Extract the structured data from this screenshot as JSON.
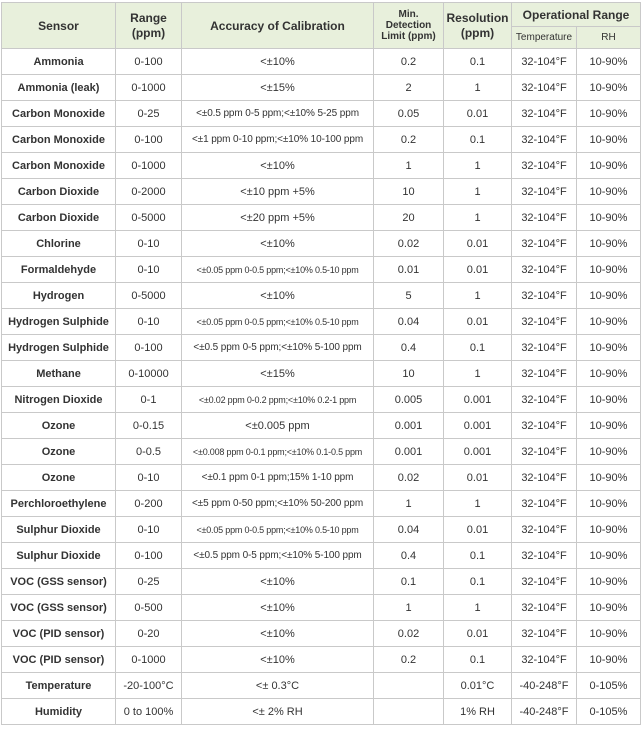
{
  "headers": {
    "sensor": "Sensor",
    "range": "Range (ppm)",
    "accuracy": "Accuracy of Calibration",
    "min_detection": "Min. Detection Limit (ppm)",
    "resolution": "Resolution (ppm)",
    "operational_range": "Operational Range",
    "temperature": "Temperature",
    "rh": "RH"
  },
  "rows": [
    {
      "sensor": "Ammonia",
      "range": "0-100",
      "accuracy": "<±10%",
      "mdl": "0.2",
      "resolution": "0.1",
      "temp": "32-104°F",
      "rh": "10-90%"
    },
    {
      "sensor": "Ammonia (leak)",
      "range": "0-1000",
      "accuracy": "<±15%",
      "mdl": "2",
      "resolution": "1",
      "temp": "32-104°F",
      "rh": "10-90%"
    },
    {
      "sensor": "Carbon Monoxide",
      "range": "0-25",
      "accuracy": "<±0.5 ppm 0-5 ppm;<±10% 5-25 ppm",
      "mdl": "0.05",
      "resolution": "0.01",
      "temp": "32-104°F",
      "rh": "10-90%"
    },
    {
      "sensor": "Carbon Monoxide",
      "range": "0-100",
      "accuracy": "<±1 ppm 0-10 ppm;<±10% 10-100 ppm",
      "mdl": "0.2",
      "resolution": "0.1",
      "temp": "32-104°F",
      "rh": "10-90%"
    },
    {
      "sensor": "Carbon Monoxide",
      "range": "0-1000",
      "accuracy": "<±10%",
      "mdl": "1",
      "resolution": "1",
      "temp": "32-104°F",
      "rh": "10-90%"
    },
    {
      "sensor": "Carbon Dioxide",
      "range": "0-2000",
      "accuracy": "<±10 ppm +5%",
      "mdl": "10",
      "resolution": "1",
      "temp": "32-104°F",
      "rh": "10-90%"
    },
    {
      "sensor": "Carbon Dioxide",
      "range": "0-5000",
      "accuracy": "<±20 ppm +5%",
      "mdl": "20",
      "resolution": "1",
      "temp": "32-104°F",
      "rh": "10-90%"
    },
    {
      "sensor": "Chlorine",
      "range": "0-10",
      "accuracy": "<±10%",
      "mdl": "0.02",
      "resolution": "0.01",
      "temp": "32-104°F",
      "rh": "10-90%"
    },
    {
      "sensor": "Formaldehyde",
      "range": "0-10",
      "accuracy": "<±0.05 ppm 0-0.5 ppm;<±10% 0.5-10 ppm",
      "mdl": "0.01",
      "resolution": "0.01",
      "temp": "32-104°F",
      "rh": "10-90%"
    },
    {
      "sensor": "Hydrogen",
      "range": "0-5000",
      "accuracy": "<±10%",
      "mdl": "5",
      "resolution": "1",
      "temp": "32-104°F",
      "rh": "10-90%"
    },
    {
      "sensor": "Hydrogen Sulphide",
      "range": "0-10",
      "accuracy": "<±0.05 ppm 0-0.5 ppm;<±10% 0.5-10 ppm",
      "mdl": "0.04",
      "resolution": "0.01",
      "temp": "32-104°F",
      "rh": "10-90%"
    },
    {
      "sensor": "Hydrogen Sulphide",
      "range": "0-100",
      "accuracy": "<±0.5 ppm 0-5 ppm;<±10% 5-100 ppm",
      "mdl": "0.4",
      "resolution": "0.1",
      "temp": "32-104°F",
      "rh": "10-90%"
    },
    {
      "sensor": "Methane",
      "range": "0-10000",
      "accuracy": "<±15%",
      "mdl": "10",
      "resolution": "1",
      "temp": "32-104°F",
      "rh": "10-90%"
    },
    {
      "sensor": "Nitrogen Dioxide",
      "range": "0-1",
      "accuracy": "<±0.02 ppm 0-0.2 ppm;<±10% 0.2-1 ppm",
      "mdl": "0.005",
      "resolution": "0.001",
      "temp": "32-104°F",
      "rh": "10-90%"
    },
    {
      "sensor": "Ozone",
      "range": "0-0.15",
      "accuracy": "<±0.005 ppm",
      "mdl": "0.001",
      "resolution": "0.001",
      "temp": "32-104°F",
      "rh": "10-90%"
    },
    {
      "sensor": "Ozone",
      "range": "0-0.5",
      "accuracy": "<±0.008 ppm 0-0.1 ppm;<±10% 0.1-0.5 ppm",
      "mdl": "0.001",
      "resolution": "0.001",
      "temp": "32-104°F",
      "rh": "10-90%"
    },
    {
      "sensor": "Ozone",
      "range": "0-10",
      "accuracy": "<±0.1 ppm 0-1 ppm;15% 1-10 ppm",
      "mdl": "0.02",
      "resolution": "0.01",
      "temp": "32-104°F",
      "rh": "10-90%"
    },
    {
      "sensor": "Perchloroethylene",
      "range": "0-200",
      "accuracy": "<±5 ppm 0-50 ppm;<±10% 50-200 ppm",
      "mdl": "1",
      "resolution": "1",
      "temp": "32-104°F",
      "rh": "10-90%"
    },
    {
      "sensor": "Sulphur Dioxide",
      "range": "0-10",
      "accuracy": "<±0.05 ppm 0-0.5 ppm;<±10% 0.5-10 ppm",
      "mdl": "0.04",
      "resolution": "0.01",
      "temp": "32-104°F",
      "rh": "10-90%"
    },
    {
      "sensor": "Sulphur Dioxide",
      "range": "0-100",
      "accuracy": "<±0.5 ppm 0-5 ppm;<±10% 5-100 ppm",
      "mdl": "0.4",
      "resolution": "0.1",
      "temp": "32-104°F",
      "rh": "10-90%"
    },
    {
      "sensor": "VOC (GSS sensor)",
      "range": "0-25",
      "accuracy": "<±10%",
      "mdl": "0.1",
      "resolution": "0.1",
      "temp": "32-104°F",
      "rh": "10-90%"
    },
    {
      "sensor": "VOC (GSS sensor)",
      "range": "0-500",
      "accuracy": "<±10%",
      "mdl": "1",
      "resolution": "1",
      "temp": "32-104°F",
      "rh": "10-90%"
    },
    {
      "sensor": "VOC (PID sensor)",
      "range": "0-20",
      "accuracy": "<±10%",
      "mdl": "0.02",
      "resolution": "0.01",
      "temp": "32-104°F",
      "rh": "10-90%"
    },
    {
      "sensor": "VOC (PID sensor)",
      "range": "0-1000",
      "accuracy": "<±10%",
      "mdl": "0.2",
      "resolution": "0.1",
      "temp": "32-104°F",
      "rh": "10-90%"
    },
    {
      "sensor": "Temperature",
      "range": "-20-100°C",
      "accuracy": "<± 0.3°C",
      "mdl": "",
      "resolution": "0.01°C",
      "temp": "-40-248°F",
      "rh": "0-105%"
    },
    {
      "sensor": "Humidity",
      "range": "0 to 100%",
      "accuracy": "<± 2% RH",
      "mdl": "",
      "resolution": "1% RH",
      "temp": "-40-248°F",
      "rh": "0-105%"
    }
  ]
}
